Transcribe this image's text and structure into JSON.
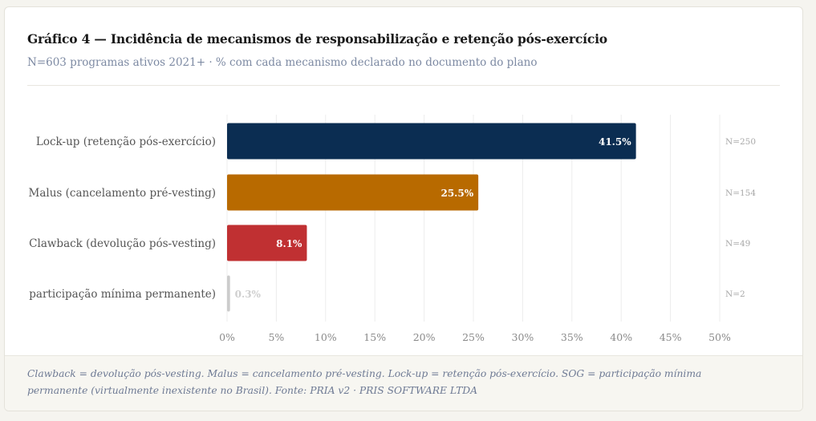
{
  "header": {
    "title": "Gráfico 4 — Incidência de mecanismos de responsabilização e retenção pós-exercício",
    "subtitle": "N=603 programas ativos 2021+ · % com cada mecanismo declarado no documento do plano"
  },
  "chart_data": {
    "type": "bar",
    "orientation": "horizontal",
    "categories": [
      "Lock-up (retenção pós-exercício)",
      "Malus (cancelamento pré-vesting)",
      "Clawback (devolução pós-vesting)",
      "participação mínima permanente)"
    ],
    "values": [
      41.5,
      25.5,
      8.1,
      0.3
    ],
    "value_labels": [
      "41.5%",
      "25.5%",
      "8.1%",
      "0.3%"
    ],
    "counts": [
      "N=250",
      "N=154",
      "N=49",
      "N=2"
    ],
    "colors": [
      "#0b2d52",
      "#b86a00",
      "#c03032",
      "#cccccc"
    ],
    "xlim": [
      0,
      50
    ],
    "xticks": [
      "0%",
      "5%",
      "10%",
      "15%",
      "20%",
      "25%",
      "30%",
      "35%",
      "40%",
      "45%",
      "50%"
    ],
    "grid": true
  },
  "footer": {
    "note": "Clawback = devolução pós-vesting. Malus = cancelamento pré-vesting. Lock-up = retenção pós-exercício. SOG = participação mínima permanente (virtualmente inexistente no Brasil). Fonte: PRIA v2 · PRIS SOFTWARE LTDA"
  }
}
